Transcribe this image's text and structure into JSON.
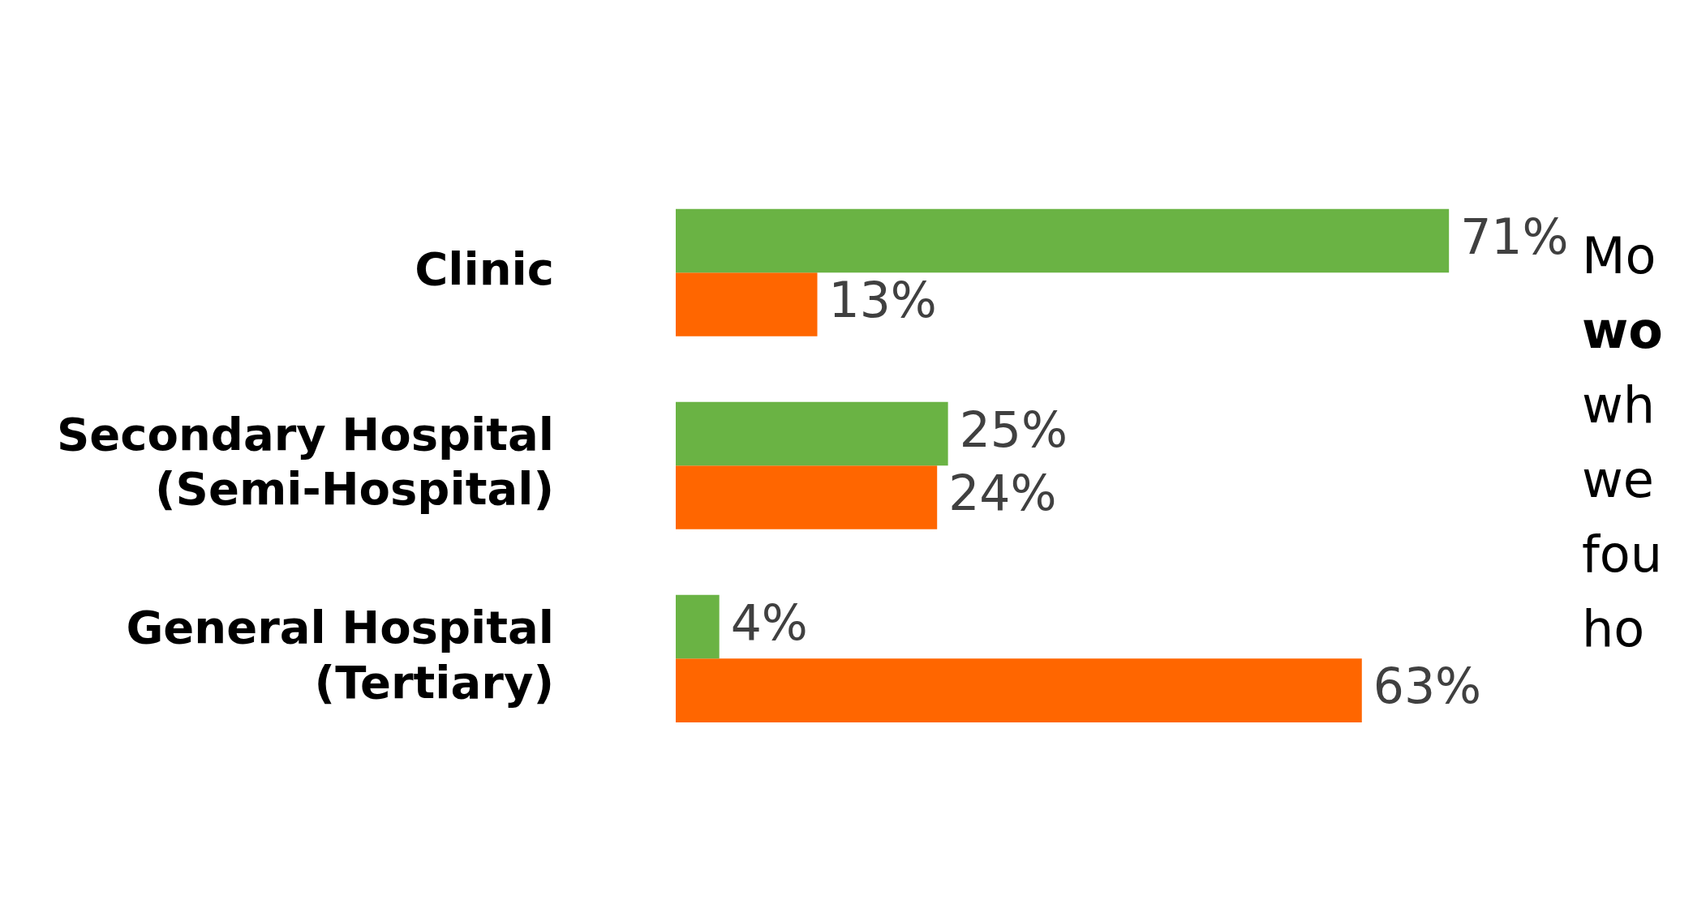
{
  "chart_data": {
    "type": "bar",
    "orientation": "horizontal",
    "categories": [
      "Clinic",
      "Secondary Hospital (Semi-Hospital)",
      "General Hospital (Tertiary)"
    ],
    "series": [
      {
        "color": "#6ab344",
        "values": [
          71,
          25,
          4
        ],
        "value_labels": [
          "71%",
          "25%",
          "4%"
        ]
      },
      {
        "color": "#ff6600",
        "values": [
          13,
          24,
          63
        ],
        "value_labels": [
          "13%",
          "24%",
          "63%"
        ]
      }
    ],
    "legend": false,
    "tick_labels": "y",
    "annotations": [
      "Mo",
      "wo",
      "wh",
      "we",
      "fou",
      "ho"
    ]
  }
}
